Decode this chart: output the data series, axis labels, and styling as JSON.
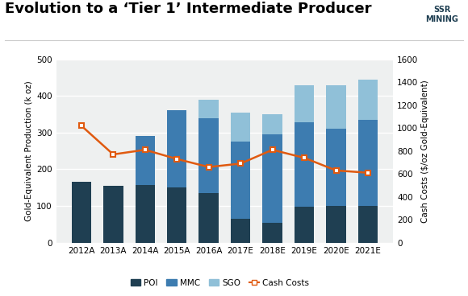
{
  "categories": [
    "2012A",
    "2013A",
    "2014A",
    "2015A",
    "2016A",
    "2017E",
    "2018E",
    "2019E",
    "2020E",
    "2021E"
  ],
  "POI": [
    165,
    155,
    158,
    150,
    135,
    65,
    55,
    98,
    100,
    100
  ],
  "MMC": [
    0,
    0,
    132,
    210,
    205,
    210,
    240,
    230,
    210,
    235
  ],
  "SGO": [
    0,
    0,
    0,
    0,
    50,
    80,
    55,
    100,
    120,
    110
  ],
  "cash_costs": [
    1020,
    770,
    810,
    730,
    660,
    690,
    810,
    740,
    630,
    610
  ],
  "color_POI": "#1f3f52",
  "color_MMC": "#3d7cb0",
  "color_SGO": "#90c0d8",
  "color_cash": "#e05a10",
  "title": "Evolution to a ‘Tier 1’ Intermediate Producer",
  "ylabel_left": "Gold-Equivalent Production (k oz)",
  "ylabel_right": "Cash Costs ($/oz Gold-Equivalent)",
  "ylim_left": [
    0,
    500
  ],
  "ylim_right": [
    0,
    1600
  ],
  "yticks_left": [
    0,
    100,
    200,
    300,
    400,
    500
  ],
  "yticks_right": [
    0,
    200,
    400,
    600,
    800,
    1000,
    1200,
    1400,
    1600
  ],
  "bg_color": "#ffffff",
  "plot_bg_color": "#eef0f0",
  "legend_labels": [
    "POI",
    "MMC",
    "SGO",
    "Cash Costs"
  ],
  "title_fontsize": 13,
  "axis_fontsize": 7.5,
  "label_fontsize": 7.5
}
